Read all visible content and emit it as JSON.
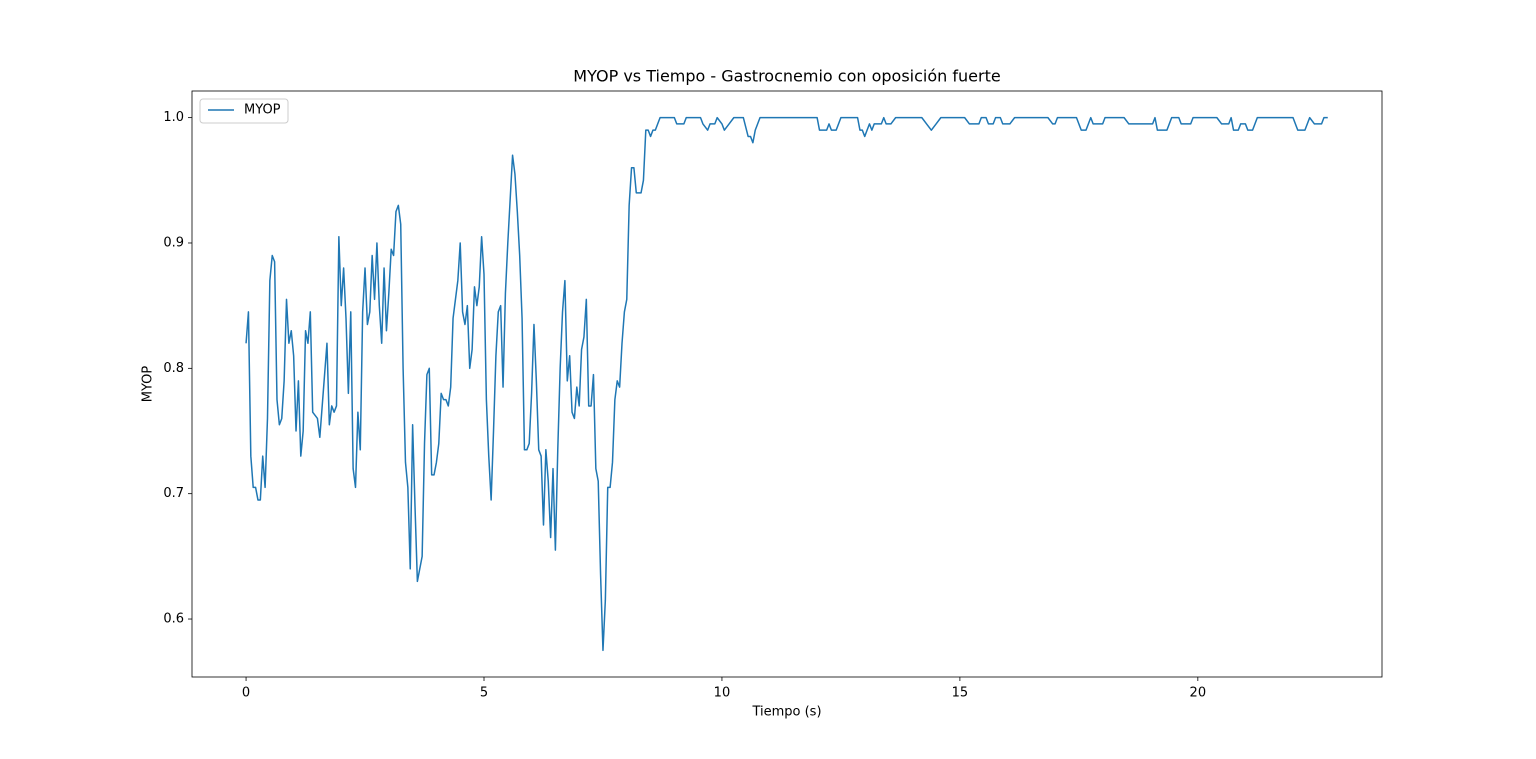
{
  "chart_data": {
    "type": "line",
    "title": "MYOP vs Tiempo - Gastrocnemio con oposición fuerte",
    "x_label": "Tiempo (s)",
    "y_label": "MYOP",
    "x": [
      0,
      0.05,
      0.1,
      0.15,
      0.2,
      0.25,
      0.3,
      0.35,
      0.4,
      0.45,
      0.5,
      0.55,
      0.6,
      0.65,
      0.7,
      0.75,
      0.8,
      0.85,
      0.9,
      0.95,
      1.0,
      1.05,
      1.1,
      1.15,
      1.2,
      1.25,
      1.3,
      1.35,
      1.4,
      1.5,
      1.55,
      1.6,
      1.7,
      1.75,
      1.8,
      1.85,
      1.9,
      1.95,
      2.0,
      2.05,
      2.1,
      2.15,
      2.2,
      2.25,
      2.3,
      2.35,
      2.4,
      2.45,
      2.5,
      2.55,
      2.6,
      2.65,
      2.7,
      2.75,
      2.8,
      2.85,
      2.9,
      2.95,
      3.0,
      3.05,
      3.1,
      3.15,
      3.2,
      3.25,
      3.3,
      3.35,
      3.4,
      3.45,
      3.5,
      3.55,
      3.6,
      3.7,
      3.75,
      3.8,
      3.85,
      3.9,
      3.95,
      4.0,
      4.05,
      4.1,
      4.15,
      4.2,
      4.25,
      4.3,
      4.35,
      4.4,
      4.45,
      4.5,
      4.55,
      4.6,
      4.65,
      4.7,
      4.75,
      4.8,
      4.85,
      4.9,
      4.95,
      5.0,
      5.05,
      5.1,
      5.15,
      5.2,
      5.25,
      5.3,
      5.35,
      5.4,
      5.45,
      5.5,
      5.6,
      5.65,
      5.7,
      5.75,
      5.8,
      5.85,
      5.9,
      5.95,
      6.0,
      6.05,
      6.1,
      6.15,
      6.2,
      6.25,
      6.3,
      6.35,
      6.4,
      6.45,
      6.5,
      6.55,
      6.6,
      6.65,
      6.7,
      6.75,
      6.8,
      6.85,
      6.9,
      6.95,
      7.0,
      7.05,
      7.1,
      7.15,
      7.2,
      7.25,
      7.3,
      7.35,
      7.4,
      7.45,
      7.5,
      7.55,
      7.6,
      7.65,
      7.7,
      7.75,
      7.8,
      7.85,
      7.9,
      7.95,
      8.0,
      8.05,
      8.1,
      8.15,
      8.2,
      8.3,
      8.35,
      8.4,
      8.45,
      8.5,
      8.55,
      8.6,
      8.65,
      8.7,
      9.0,
      9.05,
      9.2,
      9.25,
      9.55,
      9.6,
      9.7,
      9.75,
      9.85,
      9.9,
      10.0,
      10.05,
      10.15,
      10.25,
      10.45,
      10.55,
      10.6,
      10.65,
      10.7,
      10.75,
      10.8,
      12.0,
      12.05,
      12.2,
      12.25,
      12.3,
      12.4,
      12.5,
      12.85,
      12.9,
      12.95,
      13.0,
      13.05,
      13.1,
      13.15,
      13.2,
      13.35,
      13.4,
      13.45,
      13.55,
      13.65,
      14.2,
      14.3,
      14.4,
      14.5,
      14.6,
      15.1,
      15.2,
      15.4,
      15.45,
      15.55,
      15.6,
      15.7,
      15.75,
      15.85,
      15.9,
      16.05,
      16.15,
      16.85,
      16.95,
      17.0,
      17.05,
      17.45,
      17.55,
      17.65,
      17.75,
      17.8,
      18.0,
      18.05,
      18.45,
      18.55,
      19.05,
      19.1,
      19.15,
      19.35,
      19.45,
      19.6,
      19.65,
      19.85,
      19.9,
      20.4,
      20.5,
      20.65,
      20.7,
      20.75,
      20.85,
      20.9,
      21.0,
      21.05,
      21.15,
      21.25,
      22.0,
      22.1,
      22.25,
      22.35,
      22.45,
      22.6,
      22.65,
      22.73
    ],
    "series": [
      {
        "name": "MYOP",
        "color": "#1f77b4",
        "values": [
          0.82,
          0.845,
          0.73,
          0.705,
          0.705,
          0.695,
          0.695,
          0.73,
          0.705,
          0.76,
          0.87,
          0.89,
          0.885,
          0.775,
          0.755,
          0.76,
          0.79,
          0.855,
          0.82,
          0.83,
          0.81,
          0.75,
          0.79,
          0.73,
          0.75,
          0.83,
          0.82,
          0.845,
          0.765,
          0.76,
          0.745,
          0.77,
          0.82,
          0.755,
          0.77,
          0.765,
          0.77,
          0.905,
          0.85,
          0.88,
          0.84,
          0.78,
          0.845,
          0.72,
          0.705,
          0.765,
          0.735,
          0.845,
          0.88,
          0.835,
          0.845,
          0.89,
          0.855,
          0.9,
          0.85,
          0.82,
          0.88,
          0.83,
          0.86,
          0.895,
          0.89,
          0.925,
          0.93,
          0.915,
          0.8,
          0.725,
          0.705,
          0.64,
          0.755,
          0.69,
          0.63,
          0.65,
          0.74,
          0.795,
          0.8,
          0.715,
          0.715,
          0.725,
          0.74,
          0.78,
          0.775,
          0.775,
          0.77,
          0.785,
          0.84,
          0.855,
          0.87,
          0.9,
          0.845,
          0.835,
          0.85,
          0.8,
          0.815,
          0.865,
          0.85,
          0.865,
          0.905,
          0.875,
          0.775,
          0.73,
          0.695,
          0.75,
          0.81,
          0.845,
          0.85,
          0.785,
          0.86,
          0.9,
          0.97,
          0.955,
          0.925,
          0.89,
          0.84,
          0.735,
          0.735,
          0.74,
          0.78,
          0.835,
          0.79,
          0.735,
          0.73,
          0.675,
          0.735,
          0.71,
          0.665,
          0.72,
          0.655,
          0.735,
          0.8,
          0.845,
          0.87,
          0.79,
          0.81,
          0.765,
          0.76,
          0.785,
          0.77,
          0.815,
          0.825,
          0.855,
          0.77,
          0.77,
          0.795,
          0.72,
          0.71,
          0.635,
          0.575,
          0.615,
          0.705,
          0.705,
          0.725,
          0.775,
          0.79,
          0.785,
          0.82,
          0.845,
          0.855,
          0.93,
          0.96,
          0.96,
          0.94,
          0.94,
          0.95,
          0.99,
          0.99,
          0.985,
          0.99,
          0.99,
          0.995,
          1,
          1,
          0.995,
          0.995,
          1,
          1,
          0.995,
          0.99,
          0.995,
          0.995,
          1,
          0.995,
          0.99,
          0.995,
          1,
          1,
          0.985,
          0.985,
          0.98,
          0.99,
          0.995,
          1,
          1,
          0.99,
          0.99,
          0.995,
          0.99,
          0.99,
          1,
          1,
          0.99,
          0.99,
          0.985,
          0.99,
          0.995,
          0.99,
          0.995,
          0.995,
          1,
          0.995,
          0.995,
          1,
          1,
          0.995,
          0.99,
          0.995,
          1,
          1,
          0.995,
          0.995,
          1,
          1,
          0.995,
          0.995,
          1,
          1,
          0.995,
          0.995,
          1,
          1,
          0.995,
          0.995,
          1,
          1,
          0.99,
          0.99,
          1,
          0.995,
          0.995,
          1,
          1,
          0.995,
          0.995,
          1,
          0.99,
          0.99,
          1,
          1,
          0.995,
          0.995,
          1,
          1,
          0.995,
          0.995,
          1,
          0.99,
          0.99,
          0.995,
          0.995,
          0.99,
          0.99,
          1,
          1,
          0.99,
          0.99,
          1,
          0.995,
          0.995,
          1,
          1
        ]
      }
    ],
    "xlim": [
      -1.136,
      23.87
    ],
    "xticks": [
      0,
      5,
      10,
      15,
      20
    ],
    "ylim": [
      0.55375,
      1.02125
    ],
    "yticks": [
      0.6,
      0.7,
      0.8,
      0.9,
      {
        "value": 1,
        "label": "1.0"
      }
    ],
    "legend": "upper left"
  }
}
